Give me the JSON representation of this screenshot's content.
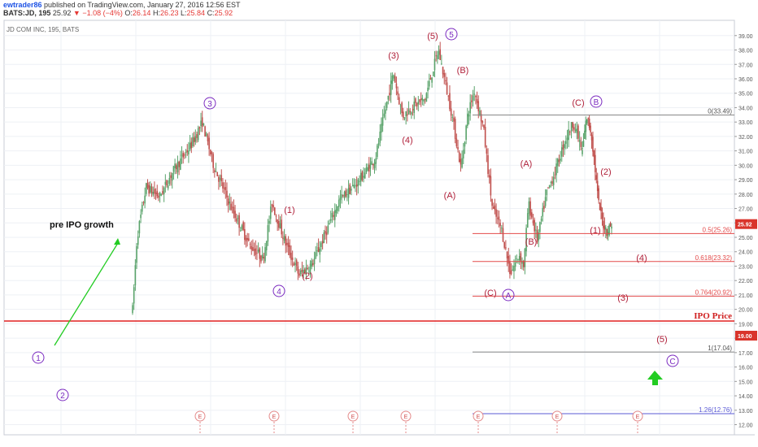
{
  "header": {
    "author": "ewtrader86",
    "published": "published on TradingView.com, January 27, 2016 12:56 EST",
    "symbol_info": "BATS:JD, 195",
    "last": "25.92",
    "change": "▼ −1.08 (−4%)",
    "o_label": "O:",
    "o_value": "26.14",
    "h_label": "H:",
    "h_value": "26.23",
    "l_label": "L:",
    "l_value": "25.84",
    "c_label": "C:",
    "c_value": "25.92"
  },
  "colors": {
    "wave_red": "#b0213a",
    "wave_purple": "#7b2bc0",
    "grid": "#eef0f5",
    "fib_red": "#e34a4a",
    "fib_gray": "#888888",
    "fib_blue": "#5b5bd6",
    "ipo_line": "#e02020",
    "arrow_green": "#22cc22"
  },
  "chart_data": {
    "type": "candlestick",
    "title": "JD COM INC, 195, BATS",
    "ylim": [
      11.5,
      39.5
    ],
    "y_ticks": [
      "12.00",
      "13.00",
      "14.00",
      "15.00",
      "16.00",
      "17.00",
      "18.00",
      "19.00",
      "20.00",
      "21.00",
      "22.00",
      "23.00",
      "24.00",
      "25.00",
      "26.00",
      "27.00",
      "28.00",
      "29.00",
      "30.00",
      "31.00",
      "32.00",
      "33.00",
      "34.00",
      "35.00",
      "36.00",
      "37.00",
      "38.00",
      "39.00"
    ],
    "current_price": "25.92",
    "ipo_price_tag": "19.00",
    "ipo_label": "IPO Price",
    "ipo_value": 19.0,
    "price_path": [
      [
        0.0,
        20.0
      ],
      [
        0.01,
        25.0
      ],
      [
        0.03,
        28.5
      ],
      [
        0.06,
        27.8
      ],
      [
        0.09,
        29.6
      ],
      [
        0.13,
        31.4
      ],
      [
        0.155,
        33.0
      ],
      [
        0.18,
        30.0
      ],
      [
        0.22,
        27.0
      ],
      [
        0.26,
        24.5
      ],
      [
        0.29,
        23.5
      ],
      [
        0.31,
        27.4
      ],
      [
        0.34,
        24.6
      ],
      [
        0.37,
        22.4
      ],
      [
        0.4,
        23.2
      ],
      [
        0.42,
        24.6
      ],
      [
        0.46,
        27.6
      ],
      [
        0.5,
        28.8
      ],
      [
        0.54,
        30.5
      ],
      [
        0.56,
        33.6
      ],
      [
        0.58,
        36.4
      ],
      [
        0.6,
        33.4
      ],
      [
        0.62,
        34.0
      ],
      [
        0.65,
        34.6
      ],
      [
        0.68,
        38.0
      ],
      [
        0.71,
        33.5
      ],
      [
        0.73,
        29.8
      ],
      [
        0.745,
        33.5
      ],
      [
        0.76,
        35.2
      ],
      [
        0.78,
        32.6
      ],
      [
        0.8,
        27.0
      ],
      [
        0.82,
        25.6
      ],
      [
        0.84,
        22.5
      ],
      [
        0.86,
        23.8
      ],
      [
        0.87,
        23.0
      ],
      [
        0.88,
        27.4
      ],
      [
        0.9,
        24.8
      ],
      [
        0.92,
        28.0
      ],
      [
        0.94,
        29.6
      ],
      [
        0.96,
        31.6
      ],
      [
        0.98,
        33.0
      ],
      [
        1.0,
        31.0
      ]
    ],
    "price_path2": [
      [
        0.0,
        31.0
      ],
      [
        0.15,
        33.4
      ],
      [
        0.3,
        32.3
      ],
      [
        0.4,
        30.5
      ],
      [
        0.55,
        27.4
      ],
      [
        0.7,
        26.0
      ],
      [
        0.85,
        25.4
      ],
      [
        1.0,
        25.92
      ]
    ],
    "fib_levels": [
      {
        "label": "0(33.49)",
        "value": 33.49,
        "style": "gray"
      },
      {
        "label": "0.5(25.26)",
        "value": 25.26,
        "style": "red"
      },
      {
        "label": "0.618(23.32)",
        "value": 23.32,
        "style": "red"
      },
      {
        "label": "0.764(20.92)",
        "value": 20.92,
        "style": "red"
      },
      {
        "label": "1(17.04)",
        "value": 17.04,
        "style": "gray"
      },
      {
        "label": "1.26(12.76)",
        "value": 12.76,
        "style": "blue"
      }
    ],
    "wave_labels": [
      {
        "text": "(1)",
        "color": "red"
      },
      {
        "text": "(2)",
        "color": "red"
      },
      {
        "text": "(3)",
        "color": "red"
      },
      {
        "text": "(4)",
        "color": "red"
      },
      {
        "text": "(5)",
        "color": "red"
      },
      {
        "text": "(A)",
        "color": "red"
      },
      {
        "text": "(B)",
        "color": "red"
      },
      {
        "text": "(C)",
        "color": "red"
      },
      {
        "text": "(A)",
        "color": "red"
      },
      {
        "text": "(B)",
        "color": "red"
      },
      {
        "text": "(C)",
        "color": "red"
      },
      {
        "text": "(1)",
        "color": "red"
      },
      {
        "text": "(2)",
        "color": "red"
      },
      {
        "text": "(3)",
        "color": "red"
      },
      {
        "text": "(4)",
        "color": "red"
      },
      {
        "text": "(5)",
        "color": "red"
      }
    ],
    "circle_labels": [
      "1",
      "2",
      "3",
      "4",
      "5",
      "A",
      "B",
      "C"
    ],
    "annotation": "pre IPO growth",
    "event_marker": "E"
  }
}
